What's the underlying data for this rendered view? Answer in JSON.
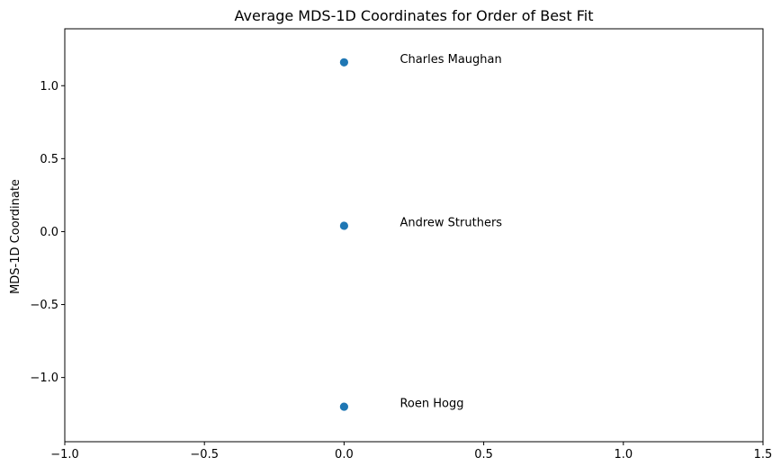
{
  "chart_data": {
    "type": "scatter",
    "title": "Average MDS-1D Coordinates for Order of Best Fit",
    "xlabel": "",
    "ylabel": "MDS-1D Coordinate",
    "xlim": [
      -1.0,
      1.5
    ],
    "ylim": [
      -1.44,
      1.39
    ],
    "x_ticks": [
      -1.0,
      -0.5,
      0.0,
      0.5,
      1.0,
      1.5
    ],
    "x_tick_labels": [
      "−1.0",
      "−0.5",
      "0.0",
      "0.5",
      "1.0",
      "1.5"
    ],
    "y_ticks": [
      1.0,
      0.5,
      0.0,
      -0.5,
      -1.0
    ],
    "y_tick_labels": [
      "1.0",
      "0.5",
      "0.0",
      "−0.5",
      "−1.0"
    ],
    "grid": false,
    "legend": "none",
    "marker_color": "#1f77b4",
    "points": [
      {
        "x": 0.0,
        "y": 1.16,
        "label": "Charles Maughan"
      },
      {
        "x": 0.0,
        "y": 0.04,
        "label": "Andrew Struthers"
      },
      {
        "x": 0.0,
        "y": -1.2,
        "label": "Roen Hogg"
      }
    ],
    "annotation_x": 0.2
  }
}
